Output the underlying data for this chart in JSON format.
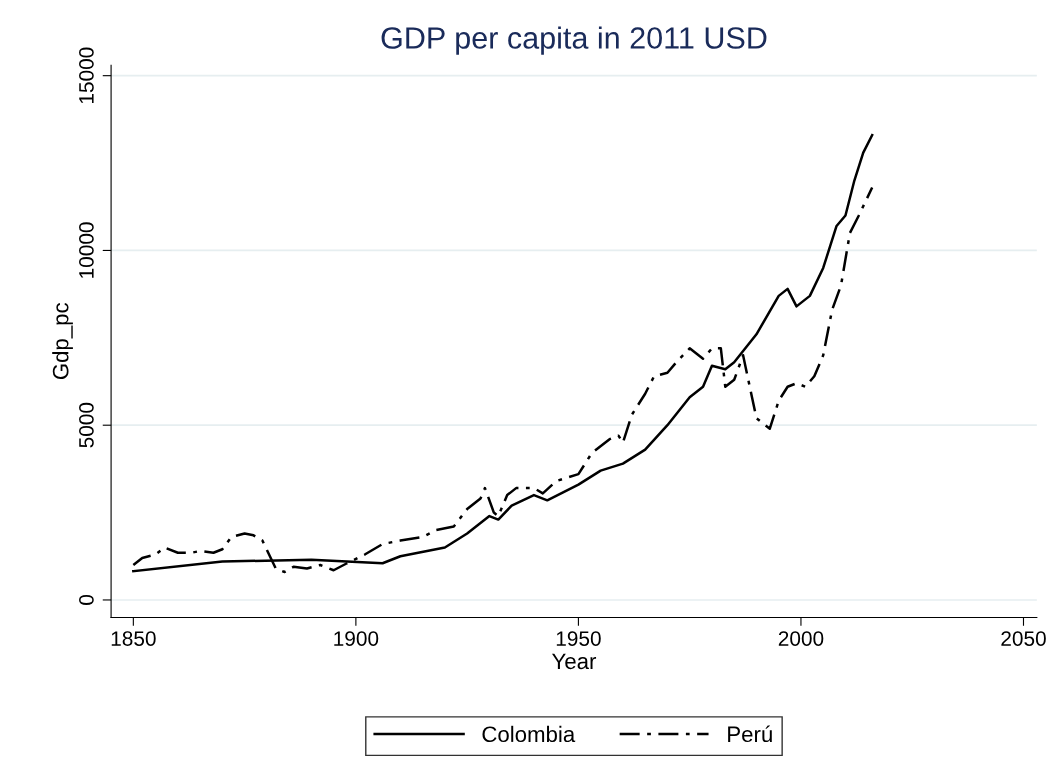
{
  "chart_data": {
    "type": "line",
    "title": "GDP per capita in 2011 USD",
    "xlabel": "Year",
    "ylabel": "Gdp_pc",
    "xlim": [
      1845,
      2053
    ],
    "xticks": [
      1850,
      1900,
      1950,
      2000,
      2050
    ],
    "ylim": [
      -500,
      15300
    ],
    "yticks": [
      0,
      5000,
      10000,
      15000
    ],
    "grid": "y",
    "legend": "bottom",
    "series": [
      {
        "name": "Colombia",
        "color": "#000000",
        "line_style": "solid",
        "x": [
          1850,
          1870,
          1890,
          1906,
          1910,
          1920,
          1925,
          1930,
          1932,
          1935,
          1940,
          1943,
          1950,
          1955,
          1960,
          1965,
          1970,
          1975,
          1978,
          1980,
          1983,
          1985,
          1990,
          1995,
          1997,
          1999,
          2002,
          2005,
          2008,
          2010,
          2012,
          2014,
          2016
        ],
        "values": [
          825,
          1100,
          1150,
          1050,
          1250,
          1500,
          1900,
          2400,
          2300,
          2700,
          3000,
          2850,
          3300,
          3700,
          3900,
          4300,
          5000,
          5800,
          6100,
          6700,
          6600,
          6800,
          7600,
          8700,
          8900,
          8400,
          8700,
          9500,
          10700,
          11000,
          12000,
          12800,
          13300
        ]
      },
      {
        "name": "Perú",
        "color": "#000000",
        "line_style": "dashdot",
        "x": [
          1850,
          1852,
          1855,
          1857,
          1860,
          1863,
          1865,
          1868,
          1870,
          1872,
          1875,
          1877,
          1879,
          1882,
          1884,
          1886,
          1889,
          1892,
          1895,
          1898,
          1902,
          1906,
          1910,
          1915,
          1918,
          1922,
          1925,
          1928,
          1929,
          1931,
          1932,
          1934,
          1936,
          1940,
          1942,
          1945,
          1950,
          1953,
          1957,
          1959,
          1960,
          1962,
          1965,
          1967,
          1970,
          1972,
          1975,
          1978,
          1980,
          1982,
          1983,
          1985,
          1987,
          1989,
          1990,
          1992,
          1993,
          1995,
          1997,
          1999,
          2001,
          2003,
          2005,
          2007,
          2009,
          2011,
          2013,
          2016
        ],
        "values": [
          1000,
          1200,
          1300,
          1500,
          1350,
          1350,
          1400,
          1350,
          1450,
          1800,
          1900,
          1850,
          1700,
          900,
          800,
          950,
          900,
          1000,
          850,
          1050,
          1300,
          1600,
          1700,
          1800,
          2000,
          2100,
          2600,
          2900,
          3200,
          2500,
          2400,
          3000,
          3200,
          3200,
          3050,
          3400,
          3600,
          4200,
          4600,
          4700,
          4500,
          5300,
          5900,
          6400,
          6500,
          6800,
          7200,
          6900,
          7200,
          7200,
          6100,
          6300,
          7000,
          5800,
          5200,
          5000,
          4900,
          5700,
          6100,
          6200,
          6100,
          6400,
          7000,
          8300,
          9000,
          10500,
          11000,
          11800
        ]
      }
    ]
  }
}
